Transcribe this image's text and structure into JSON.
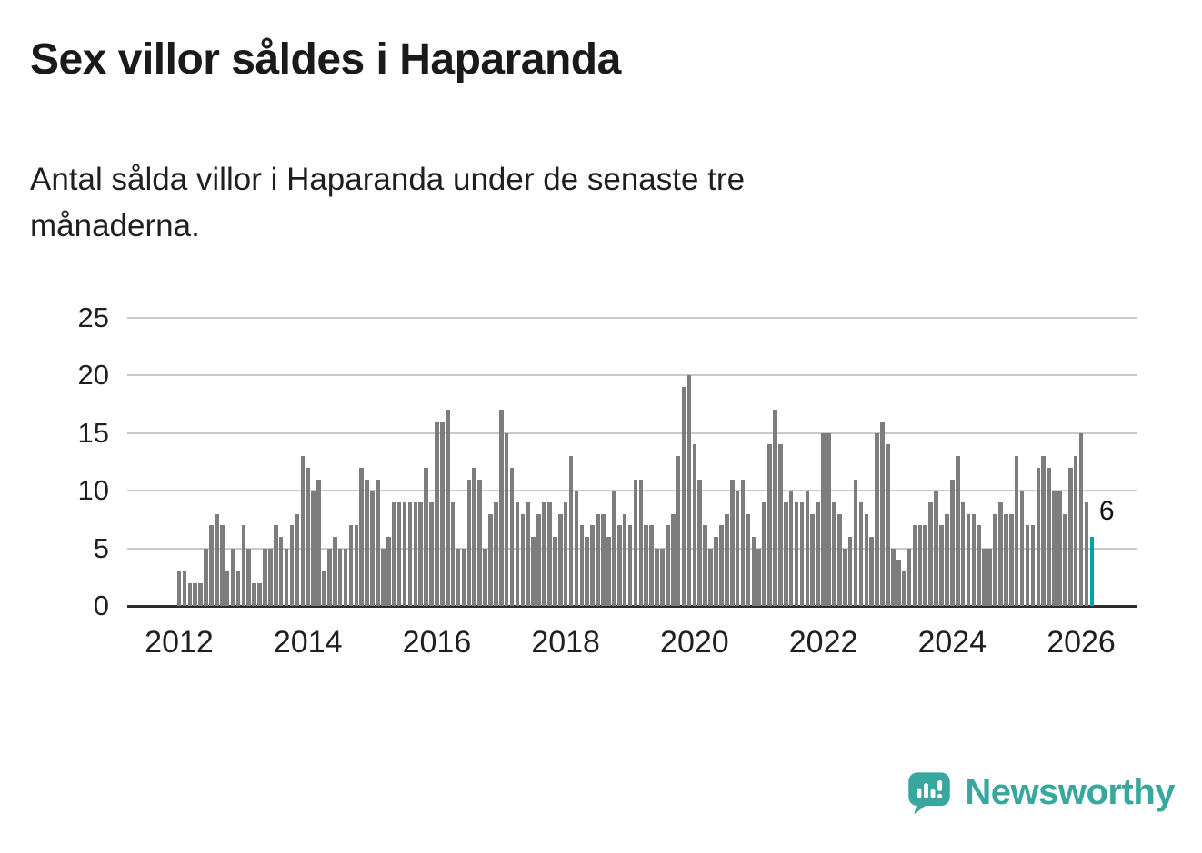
{
  "title": "Sex villor såldes i Haparanda",
  "subtitle": {
    "lines": [
      "Antal sålda villor i Haparanda under de senaste tre",
      "månaderna."
    ]
  },
  "colors": {
    "bar": "#7d7d7d",
    "highlight": "#00a3a8",
    "grid": "#c9c9c9",
    "axis": "#2d2d2d",
    "text": "#1f1f1f",
    "brand": "#38a79e"
  },
  "brand": {
    "name": "Newsworthy",
    "logo_icon": "newsworthy-speech-bubble-chart-icon"
  },
  "chart_data": {
    "type": "bar",
    "title": "Sex villor såldes i Haparanda",
    "subtitle": "Antal sålda villor i Haparanda under de senaste tre månaderna.",
    "xlabel": "",
    "ylabel": "",
    "x_start": "2012-01",
    "frequency": "monthly",
    "ylim": [
      0,
      25
    ],
    "y_ticks": [
      0,
      5,
      10,
      15,
      20,
      25
    ],
    "y_tick_labels": [
      "0",
      "5",
      "10",
      "15",
      "20",
      "25"
    ],
    "x_tick_labels": [
      "2012",
      "2014",
      "2016",
      "2018",
      "2020",
      "2022",
      "2024",
      "2026"
    ],
    "x_tick_years": [
      2012,
      2014,
      2016,
      2018,
      2020,
      2022,
      2024,
      2026
    ],
    "grid": true,
    "legend": false,
    "highlight_last": true,
    "last_value": 6,
    "last_value_label": "6",
    "values": [
      3,
      3,
      2,
      2,
      2,
      5,
      7,
      8,
      7,
      3,
      5,
      3,
      7,
      5,
      2,
      2,
      5,
      5,
      7,
      6,
      5,
      7,
      8,
      13,
      12,
      10,
      11,
      3,
      5,
      6,
      5,
      5,
      7,
      7,
      12,
      11,
      10,
      11,
      5,
      6,
      9,
      9,
      9,
      9,
      9,
      9,
      12,
      9,
      16,
      16,
      17,
      9,
      5,
      5,
      11,
      12,
      11,
      5,
      8,
      9,
      17,
      15,
      12,
      9,
      8,
      9,
      6,
      8,
      9,
      9,
      6,
      8,
      9,
      13,
      10,
      7,
      6,
      7,
      8,
      8,
      6,
      10,
      7,
      8,
      7,
      11,
      11,
      7,
      7,
      5,
      5,
      7,
      8,
      13,
      19,
      20,
      14,
      11,
      7,
      5,
      6,
      7,
      8,
      11,
      10,
      11,
      8,
      6,
      5,
      9,
      14,
      17,
      14,
      9,
      10,
      9,
      9,
      10,
      8,
      9,
      15,
      15,
      9,
      8,
      5,
      6,
      11,
      9,
      8,
      6,
      15,
      16,
      14,
      5,
      4,
      3,
      5,
      7,
      7,
      7,
      9,
      10,
      7,
      8,
      11,
      13,
      9,
      8,
      8,
      7,
      5,
      5,
      8,
      9,
      8,
      8,
      13,
      10,
      7,
      7,
      12,
      13,
      12,
      10,
      10,
      8,
      12,
      13,
      15,
      9,
      6
    ]
  }
}
